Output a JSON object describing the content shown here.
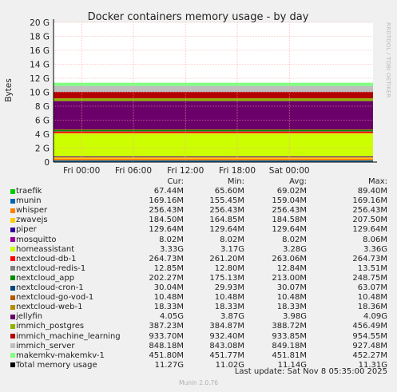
{
  "chart_data": {
    "type": "area",
    "title": "Docker containers memory usage - by day",
    "ylabel": "Bytes",
    "ylim": [
      0,
      20
    ],
    "y_unit": "G",
    "y_ticks": [
      0,
      2,
      4,
      6,
      8,
      10,
      12,
      14,
      16,
      18,
      20
    ],
    "y_tick_labels": [
      "0",
      "2 G",
      "4 G",
      "6 G",
      "8 G",
      "10 G",
      "12 G",
      "14 G",
      "16 G",
      "18 G",
      "20 G"
    ],
    "x_ticks": [
      0.088,
      0.25,
      0.413,
      0.575,
      0.738
    ],
    "x_tick_labels": [
      "Fri 00:00",
      "Fri 06:00",
      "Fri 12:00",
      "Fri 18:00",
      "Sat 00:00"
    ],
    "stack_order_note": "",
    "series": [
      {
        "name": "traefik",
        "color": "#00cc00",
        "value": 0.0674
      },
      {
        "name": "munin",
        "color": "#0066b3",
        "value": 0.1692
      },
      {
        "name": "whisper",
        "color": "#ff8000",
        "value": 0.2564
      },
      {
        "name": "zwavejs",
        "color": "#ffcc00",
        "value": 0.1845
      },
      {
        "name": "piper",
        "color": "#330099",
        "value": 0.1296
      },
      {
        "name": "mosquitto",
        "color": "#990099",
        "value": 0.008
      },
      {
        "name": "homeassistant",
        "color": "#ccff00",
        "value": 3.33
      },
      {
        "name": "nextcloud-db-1",
        "color": "#ff0000",
        "value": 0.2647
      },
      {
        "name": "nextcloud-redis-1",
        "color": "#808080",
        "value": 0.0128
      },
      {
        "name": "nextcloud_app",
        "color": "#008f00",
        "value": 0.2023
      },
      {
        "name": "nextcloud-cron-1",
        "color": "#00487d",
        "value": 0.03
      },
      {
        "name": "nextcloud-go-vod-1",
        "color": "#b35a00",
        "value": 0.0105
      },
      {
        "name": "nextcloud-web-1",
        "color": "#b38f00",
        "value": 0.0183
      },
      {
        "name": "jellyfin",
        "color": "#6b006b",
        "value": 4.05
      },
      {
        "name": "immich_postgres",
        "color": "#8fb300",
        "value": 0.3872
      },
      {
        "name": "immich_machine_learning",
        "color": "#b30000",
        "value": 0.9337
      },
      {
        "name": "immich_server",
        "color": "#bebebe",
        "value": 0.8482
      },
      {
        "name": "makemkv-makemkv-1",
        "color": "#80ff80",
        "value": 0.4518
      }
    ],
    "legend": {
      "headers": [
        "Cur:",
        "Min:",
        "Avg:",
        "Max:"
      ],
      "rows": [
        {
          "name": "traefik",
          "color": "#00cc00",
          "cur": "67.44M",
          "min": "65.60M",
          "avg": "69.02M",
          "max": "89.40M"
        },
        {
          "name": "munin",
          "color": "#0066b3",
          "cur": "169.16M",
          "min": "155.45M",
          "avg": "159.04M",
          "max": "169.16M"
        },
        {
          "name": "whisper",
          "color": "#ff8000",
          "cur": "256.43M",
          "min": "256.43M",
          "avg": "256.43M",
          "max": "256.43M"
        },
        {
          "name": "zwavejs",
          "color": "#ffcc00",
          "cur": "184.50M",
          "min": "164.85M",
          "avg": "184.58M",
          "max": "207.50M"
        },
        {
          "name": "piper",
          "color": "#330099",
          "cur": "129.64M",
          "min": "129.64M",
          "avg": "129.64M",
          "max": "129.64M"
        },
        {
          "name": "mosquitto",
          "color": "#990099",
          "cur": "8.02M",
          "min": "8.02M",
          "avg": "8.02M",
          "max": "8.06M"
        },
        {
          "name": "homeassistant",
          "color": "#ccff00",
          "cur": "3.33G",
          "min": "3.17G",
          "avg": "3.28G",
          "max": "3.36G"
        },
        {
          "name": "nextcloud-db-1",
          "color": "#ff0000",
          "cur": "264.73M",
          "min": "261.20M",
          "avg": "263.06M",
          "max": "264.73M"
        },
        {
          "name": "nextcloud-redis-1",
          "color": "#808080",
          "cur": "12.85M",
          "min": "12.80M",
          "avg": "12.84M",
          "max": "13.51M"
        },
        {
          "name": "nextcloud_app",
          "color": "#008f00",
          "cur": "202.27M",
          "min": "175.13M",
          "avg": "213.00M",
          "max": "248.75M"
        },
        {
          "name": "nextcloud-cron-1",
          "color": "#00487d",
          "cur": "30.04M",
          "min": "29.93M",
          "avg": "30.07M",
          "max": "63.07M"
        },
        {
          "name": "nextcloud-go-vod-1",
          "color": "#b35a00",
          "cur": "10.48M",
          "min": "10.48M",
          "avg": "10.48M",
          "max": "10.48M"
        },
        {
          "name": "nextcloud-web-1",
          "color": "#b38f00",
          "cur": "18.33M",
          "min": "18.33M",
          "avg": "18.33M",
          "max": "18.36M"
        },
        {
          "name": "jellyfin",
          "color": "#6b006b",
          "cur": "4.05G",
          "min": "3.87G",
          "avg": "3.98G",
          "max": "4.09G"
        },
        {
          "name": "immich_postgres",
          "color": "#8fb300",
          "cur": "387.23M",
          "min": "384.87M",
          "avg": "388.72M",
          "max": "456.49M"
        },
        {
          "name": "immich_machine_learning",
          "color": "#b30000",
          "cur": "933.70M",
          "min": "932.40M",
          "avg": "933.85M",
          "max": "954.55M"
        },
        {
          "name": "immich_server",
          "color": "#bebebe",
          "cur": "848.18M",
          "min": "843.08M",
          "avg": "849.18M",
          "max": "927.48M"
        },
        {
          "name": "makemkv-makemkv-1",
          "color": "#80ff80",
          "cur": "451.80M",
          "min": "451.77M",
          "avg": "451.81M",
          "max": "452.27M"
        },
        {
          "name": "Total memory usage",
          "color": "#000000",
          "cur": "11.27G",
          "min": "11.02G",
          "avg": "11.14G",
          "max": "11.31G"
        }
      ]
    },
    "grid": true
  },
  "side_label": "RRDTOOL / TOBI OETIKER",
  "last_update": "Last update: Sat Nov  8 05:35:00 2025",
  "footer": "Munin 2.0.76",
  "colors": {
    "background": "#f0f0f0",
    "plot_bg": "#ffffff",
    "grid": "#ff9f9f"
  }
}
